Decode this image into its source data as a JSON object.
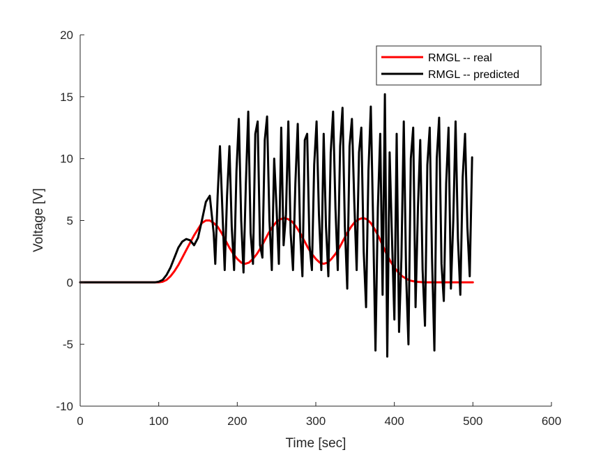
{
  "chart_data": {
    "type": "line",
    "title": "",
    "xlabel": "Time [sec]",
    "ylabel": "Voltage [V]",
    "xlim": [
      0,
      600
    ],
    "ylim": [
      -10,
      20
    ],
    "xticks": [
      0,
      100,
      200,
      300,
      400,
      500,
      600
    ],
    "yticks": [
      -10,
      -5,
      0,
      5,
      10,
      15,
      20
    ],
    "grid": false,
    "legend_position": "top-right",
    "series": [
      {
        "name": "RMGL -- real",
        "color": "#ff0000",
        "x": [
          0,
          95,
          100,
          105,
          110,
          115,
          120,
          125,
          130,
          135,
          140,
          145,
          150,
          155,
          160,
          165,
          170,
          175,
          180,
          185,
          190,
          195,
          200,
          205,
          210,
          215,
          220,
          225,
          230,
          235,
          240,
          245,
          250,
          255,
          260,
          265,
          270,
          275,
          280,
          285,
          290,
          295,
          300,
          305,
          310,
          315,
          320,
          325,
          330,
          335,
          340,
          345,
          350,
          355,
          360,
          365,
          370,
          375,
          380,
          385,
          390,
          395,
          400,
          405,
          410,
          415,
          420,
          425,
          430,
          435,
          440,
          445,
          450,
          460,
          470,
          480,
          490,
          500
        ],
        "y": [
          0,
          0,
          0,
          0.05,
          0.2,
          0.5,
          0.9,
          1.4,
          2.0,
          2.6,
          3.2,
          3.8,
          4.3,
          4.8,
          5.0,
          5.0,
          4.8,
          4.5,
          4.0,
          3.4,
          2.8,
          2.3,
          1.9,
          1.6,
          1.5,
          1.6,
          1.9,
          2.3,
          2.8,
          3.4,
          4.0,
          4.5,
          4.9,
          5.1,
          5.2,
          5.1,
          4.9,
          4.5,
          4.0,
          3.4,
          2.8,
          2.3,
          1.9,
          1.6,
          1.5,
          1.6,
          1.9,
          2.3,
          2.8,
          3.4,
          4.0,
          4.5,
          4.9,
          5.1,
          5.2,
          5.1,
          4.8,
          4.3,
          3.7,
          3.0,
          2.3,
          1.7,
          1.2,
          0.8,
          0.5,
          0.3,
          0.15,
          0.08,
          0.04,
          0.02,
          0.01,
          0,
          0,
          0,
          0,
          0,
          0,
          0
        ]
      },
      {
        "name": "RMGL -- predicted",
        "color": "#000000",
        "x": [
          0,
          95,
          100,
          105,
          110,
          115,
          120,
          125,
          130,
          135,
          140,
          145,
          150,
          155,
          160,
          165,
          170,
          172,
          175,
          178,
          181,
          184,
          187,
          190,
          193,
          196,
          199,
          202,
          205,
          208,
          211,
          214,
          217,
          220,
          223,
          226,
          229,
          232,
          235,
          238,
          241,
          244,
          247,
          250,
          253,
          256,
          259,
          262,
          265,
          268,
          271,
          274,
          277,
          280,
          283,
          286,
          289,
          292,
          295,
          298,
          301,
          304,
          307,
          310,
          313,
          316,
          319,
          322,
          325,
          328,
          331,
          334,
          337,
          340,
          343,
          346,
          349,
          352,
          355,
          358,
          361,
          364,
          367,
          370,
          373,
          376,
          379,
          382,
          385,
          388,
          391,
          394,
          397,
          400,
          403,
          406,
          409,
          412,
          415,
          418,
          421,
          424,
          427,
          430,
          433,
          436,
          439,
          442,
          445,
          448,
          451,
          454,
          457,
          460,
          463,
          466,
          469,
          472,
          475,
          478,
          481,
          484,
          487,
          490,
          493,
          496,
          499
        ],
        "y": [
          0,
          0,
          0.05,
          0.2,
          0.6,
          1.2,
          2.0,
          2.8,
          3.3,
          3.5,
          3.4,
          3.0,
          3.6,
          5.0,
          6.5,
          7.0,
          4.0,
          1.5,
          7.0,
          11.0,
          6.0,
          1.0,
          7.0,
          11.0,
          4.5,
          1.0,
          9.0,
          13.2,
          5.0,
          0.8,
          8.0,
          13.8,
          4.0,
          1.5,
          12.0,
          13.0,
          3.0,
          2.0,
          11.5,
          13.4,
          5.0,
          1.0,
          10.0,
          6.0,
          1.5,
          12.5,
          3.0,
          5.5,
          13.0,
          4.0,
          1.0,
          8.0,
          12.8,
          4.0,
          0.5,
          11.5,
          12.0,
          3.0,
          1.0,
          9.5,
          13.0,
          5.5,
          1.0,
          12.0,
          4.5,
          0.5,
          10.5,
          13.8,
          6.0,
          1.0,
          11.0,
          14.1,
          4.5,
          -0.5,
          11.0,
          13.2,
          6.5,
          1.0,
          10.5,
          12.5,
          2.5,
          -2.0,
          9.0,
          14.2,
          5.0,
          -5.5,
          6.0,
          12.0,
          -1.0,
          15.2,
          -6.0,
          10.5,
          3.5,
          -3.0,
          12.0,
          -4.0,
          2.0,
          13.0,
          0.5,
          -5.0,
          10.0,
          12.5,
          -2.0,
          6.0,
          11.5,
          1.0,
          -3.5,
          9.5,
          12.5,
          2.0,
          -5.5,
          10.0,
          13.3,
          1.5,
          -1.5,
          8.0,
          12.5,
          -0.5,
          5.0,
          13.0,
          3.5,
          -1.0,
          8.5,
          12.0,
          4.5,
          0.5,
          10.1
        ]
      }
    ]
  }
}
